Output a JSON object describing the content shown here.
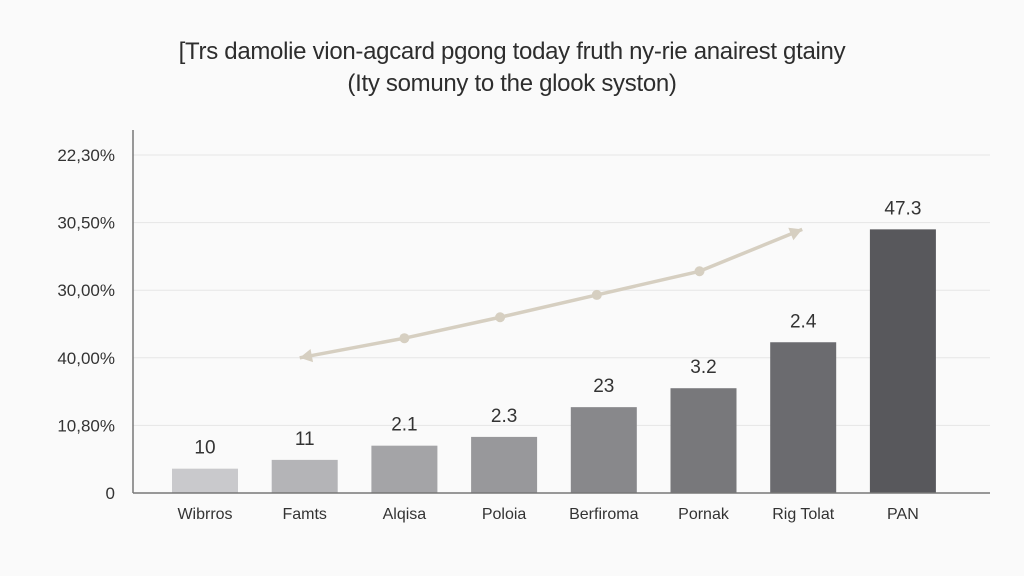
{
  "chart_data": {
    "type": "bar",
    "title": "[Trs damolie vion-agcard pgong today fruth ny-rie anairest gtainy",
    "subtitle": "(Ity somuny to the glook syston)",
    "xlabel": "",
    "ylabel": "",
    "categories": [
      "Wibrros",
      "Famts",
      "Alqisa",
      "Poloia",
      "Berfiroma",
      "Pornak",
      "Rig Tolat",
      "PAN"
    ],
    "values": [
      0.36,
      0.49,
      0.7,
      0.83,
      1.27,
      1.55,
      2.23,
      3.9
    ],
    "data_labels": [
      "10",
      "11",
      "2.1",
      "2.3",
      "23",
      "3.2",
      "2.4",
      "47.3"
    ],
    "bar_colors": [
      "#c9c9cc",
      "#b4b4b7",
      "#a4a4a7",
      "#98989b",
      "#88888b",
      "#78787b",
      "#6b6b6f",
      "#58585c"
    ],
    "ylim": [
      0,
      5
    ],
    "y_ticks": [
      0,
      1,
      2,
      3,
      4,
      5
    ],
    "y_tick_labels": [
      "0",
      "10,80%",
      "40,00%",
      "30,00%",
      "30,50%",
      "22,30%"
    ],
    "grid": true,
    "trend_line": {
      "color": "#d6cfc1",
      "x": [
        0.95,
        2.0,
        2.96,
        3.93,
        4.96,
        5.99
      ],
      "y": [
        2.0,
        2.29,
        2.6,
        2.93,
        3.28,
        3.9
      ]
    }
  }
}
